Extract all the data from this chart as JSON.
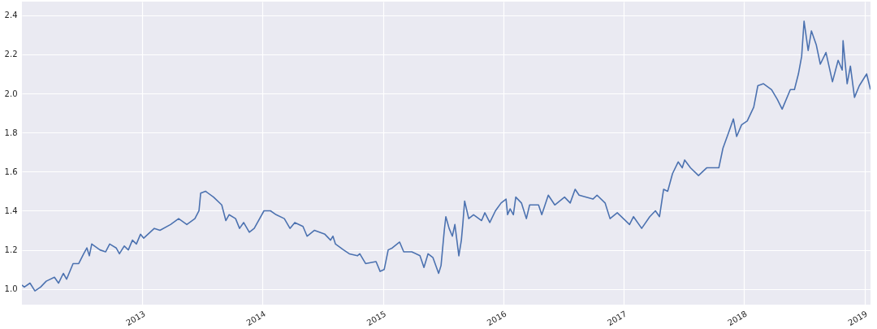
{
  "chart_data": {
    "type": "line",
    "x": [
      2012.0,
      2012.02,
      2012.067,
      2012.108,
      2012.155,
      2012.202,
      2012.27,
      2012.304,
      2012.344,
      2012.371,
      2012.425,
      2012.472,
      2012.513,
      2012.54,
      2012.56,
      2012.58,
      2012.648,
      2012.695,
      2012.729,
      2012.783,
      2012.81,
      2012.85,
      2012.884,
      2012.918,
      2012.951,
      2012.985,
      2013.012,
      2013.1,
      2013.147,
      2013.235,
      2013.302,
      2013.37,
      2013.437,
      2013.471,
      2013.485,
      2013.525,
      2013.592,
      2013.66,
      2013.694,
      2013.721,
      2013.775,
      2013.808,
      2013.842,
      2013.889,
      2013.93,
      2014.011,
      2014.065,
      2014.112,
      2014.18,
      2014.227,
      2014.267,
      2014.335,
      2014.369,
      2014.429,
      2014.517,
      2014.564,
      2014.584,
      2014.605,
      2014.672,
      2014.72,
      2014.787,
      2014.807,
      2014.855,
      2014.942,
      2014.976,
      2015.01,
      2015.043,
      2015.077,
      2015.138,
      2015.172,
      2015.239,
      2015.307,
      2015.34,
      2015.374,
      2015.415,
      2015.462,
      2015.482,
      2015.509,
      2015.522,
      2015.549,
      2015.576,
      2015.597,
      2015.63,
      2015.651,
      2015.664,
      2015.678,
      2015.712,
      2015.752,
      2015.819,
      2015.846,
      2015.887,
      2015.934,
      2015.981,
      2016.022,
      2016.035,
      2016.056,
      2016.083,
      2016.103,
      2016.15,
      2016.191,
      2016.218,
      2016.292,
      2016.319,
      2016.373,
      2016.427,
      2016.508,
      2016.555,
      2016.596,
      2016.629,
      2016.744,
      2016.778,
      2016.845,
      2016.886,
      2016.946,
      2017.048,
      2017.081,
      2017.149,
      2017.216,
      2017.263,
      2017.297,
      2017.331,
      2017.365,
      2017.405,
      2017.452,
      2017.486,
      2017.506,
      2017.554,
      2017.621,
      2017.689,
      2017.79,
      2017.824,
      2017.871,
      2017.911,
      2017.938,
      2017.979,
      2018.026,
      2018.08,
      2018.114,
      2018.161,
      2018.228,
      2018.276,
      2018.316,
      2018.384,
      2018.418,
      2018.451,
      2018.478,
      2018.498,
      2018.532,
      2018.559,
      2018.599,
      2018.633,
      2018.68,
      2018.734,
      2018.781,
      2018.815,
      2018.822,
      2018.856,
      2018.883,
      2018.917,
      2018.957,
      2019.018,
      2019.05
    ],
    "series": [
      {
        "color": "#4c72b0",
        "values": [
          1.02,
          1.01,
          1.03,
          0.99,
          1.01,
          1.04,
          1.06,
          1.03,
          1.08,
          1.05,
          1.13,
          1.13,
          1.18,
          1.21,
          1.17,
          1.23,
          1.2,
          1.19,
          1.23,
          1.21,
          1.18,
          1.22,
          1.2,
          1.25,
          1.23,
          1.28,
          1.26,
          1.31,
          1.3,
          1.33,
          1.36,
          1.33,
          1.36,
          1.4,
          1.49,
          1.5,
          1.47,
          1.43,
          1.35,
          1.38,
          1.36,
          1.31,
          1.34,
          1.29,
          1.31,
          1.4,
          1.4,
          1.38,
          1.36,
          1.31,
          1.34,
          1.32,
          1.27,
          1.3,
          1.28,
          1.25,
          1.27,
          1.23,
          1.2,
          1.18,
          1.17,
          1.18,
          1.13,
          1.14,
          1.09,
          1.1,
          1.2,
          1.21,
          1.24,
          1.19,
          1.19,
          1.17,
          1.11,
          1.18,
          1.16,
          1.08,
          1.12,
          1.3,
          1.37,
          1.31,
          1.27,
          1.33,
          1.17,
          1.25,
          1.34,
          1.45,
          1.36,
          1.38,
          1.35,
          1.39,
          1.34,
          1.4,
          1.44,
          1.46,
          1.38,
          1.41,
          1.38,
          1.47,
          1.44,
          1.36,
          1.43,
          1.43,
          1.38,
          1.48,
          1.43,
          1.47,
          1.44,
          1.51,
          1.48,
          1.46,
          1.48,
          1.44,
          1.36,
          1.39,
          1.33,
          1.37,
          1.31,
          1.37,
          1.4,
          1.37,
          1.51,
          1.5,
          1.59,
          1.65,
          1.62,
          1.66,
          1.62,
          1.58,
          1.62,
          1.62,
          1.72,
          1.8,
          1.87,
          1.78,
          1.84,
          1.86,
          1.93,
          2.04,
          2.05,
          2.02,
          1.97,
          1.92,
          2.02,
          2.02,
          2.1,
          2.19,
          2.37,
          2.22,
          2.32,
          2.25,
          2.15,
          2.21,
          2.06,
          2.17,
          2.12,
          2.27,
          2.05,
          2.14,
          1.98,
          2.04,
          2.1,
          2.02
        ]
      }
    ],
    "xlim": [
      2012.0,
      2019.05
    ],
    "xticks": [
      2013,
      2014,
      2015,
      2016,
      2017,
      2018,
      2019
    ],
    "ylim": [
      0.92,
      2.47
    ],
    "yticks": [
      {
        "value": 1.0,
        "label": "1.0"
      },
      {
        "value": 1.2,
        "label": "1.2"
      },
      {
        "value": 1.4,
        "label": "1.4"
      },
      {
        "value": 1.6,
        "label": "1.6"
      },
      {
        "value": 1.8,
        "label": "1.8"
      },
      {
        "value": 2.0,
        "label": "2.0"
      },
      {
        "value": 2.2,
        "label": "2.2"
      },
      {
        "value": 2.4,
        "label": "2.4"
      }
    ],
    "grid": true,
    "legend": false,
    "marker": "none",
    "line_style": "solid"
  }
}
